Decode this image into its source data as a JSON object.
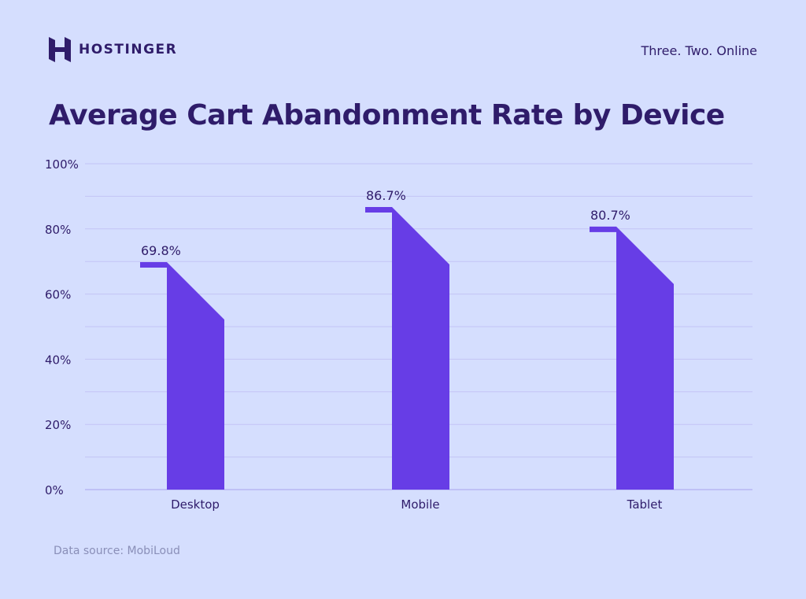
{
  "header": {
    "brand": "HOSTINGER",
    "tagline": "Three. Two. Online"
  },
  "footer": {
    "source": "Data source: MobiLoud"
  },
  "colors": {
    "background": "#d5defe",
    "bar": "#673de6",
    "text": "#2f1c6a",
    "grid": "#c3c4f5"
  },
  "chart_data": {
    "type": "bar",
    "title": "Average Cart Abandonment Rate by Device",
    "categories": [
      "Desktop",
      "Mobile",
      "Tablet"
    ],
    "values": [
      69.8,
      86.7,
      80.7
    ],
    "data_labels": [
      "69.8%",
      "86.7%",
      "80.7%"
    ],
    "yticks": [
      "0%",
      "20%",
      "40%",
      "60%",
      "80%",
      "100%"
    ],
    "ylim": [
      0,
      100
    ],
    "xlabel": "",
    "ylabel": "",
    "grid": true
  }
}
